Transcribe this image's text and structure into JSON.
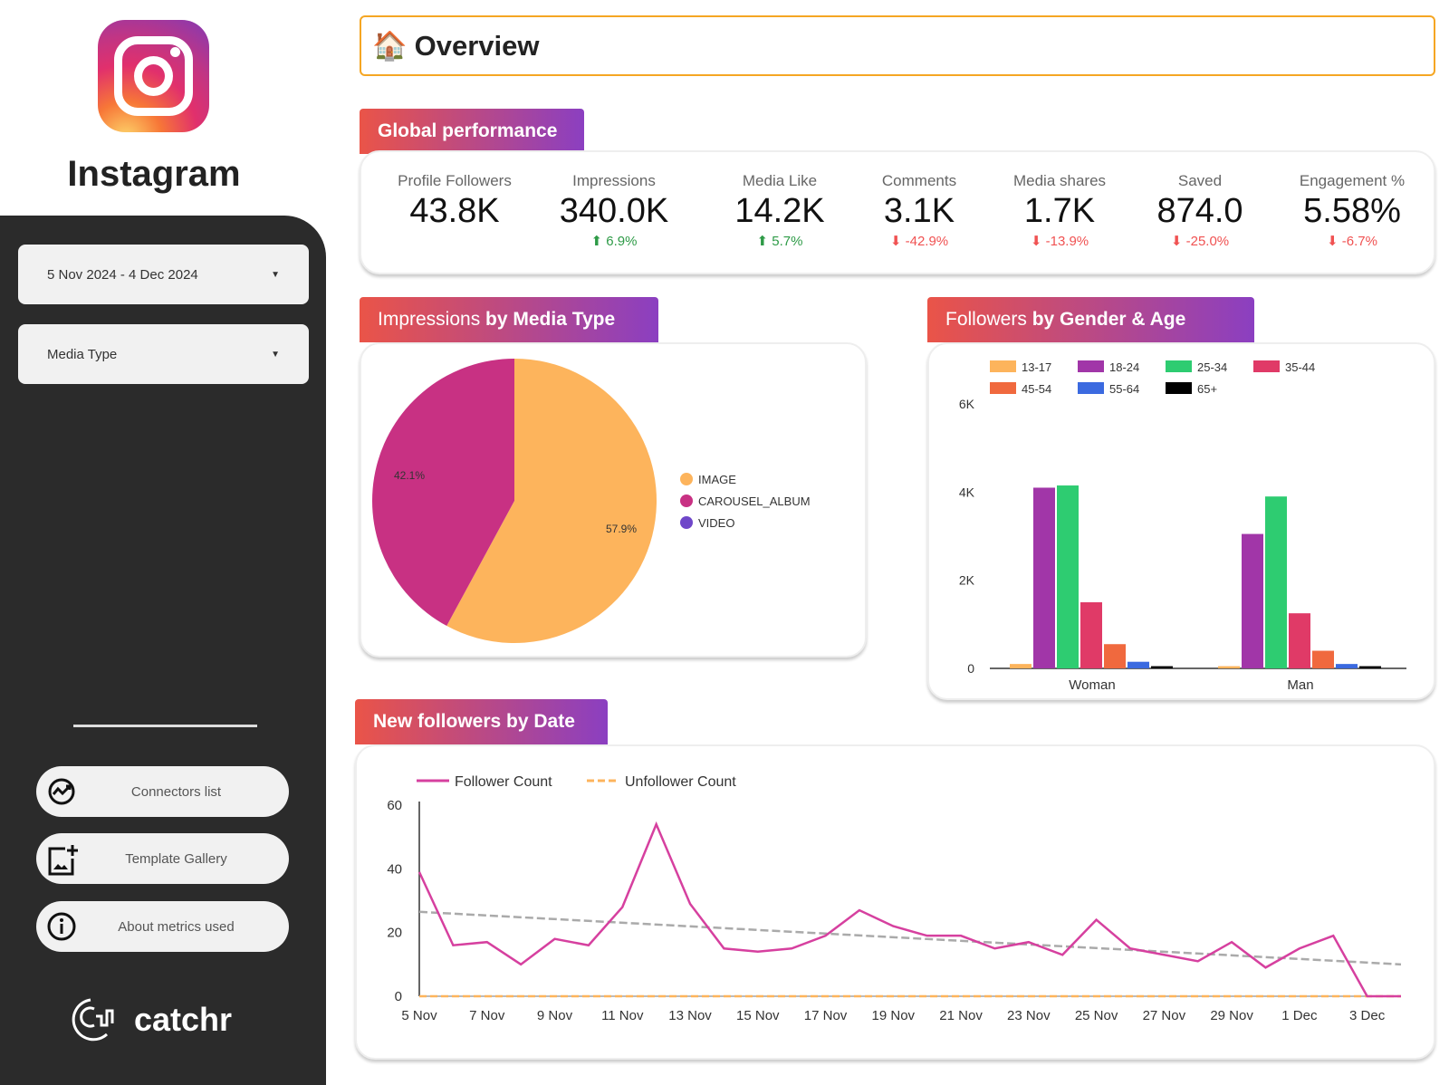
{
  "brand": {
    "name": "Instagram",
    "logo": "instagram-logo"
  },
  "sidebar": {
    "date_range": "5 Nov 2024 - 4 Dec 2024",
    "media_type": "Media Type",
    "links": [
      {
        "label": "Connectors list",
        "icon": "chart-circle-icon"
      },
      {
        "label": "Template Gallery",
        "icon": "add-image-icon"
      },
      {
        "label": "About metrics used",
        "icon": "info-icon"
      }
    ],
    "footer_logo": "catchr"
  },
  "header": {
    "icon": "🏠",
    "title": "Overview"
  },
  "global": {
    "title": "Global performance",
    "kpis": [
      {
        "label": "Profile Followers",
        "value": "43.8K",
        "delta": "",
        "dir": ""
      },
      {
        "label": "Impressions",
        "value": "340.0K",
        "delta": "6.9%",
        "dir": "up"
      },
      {
        "label": "Media Like",
        "value": "14.2K",
        "delta": "5.7%",
        "dir": "up"
      },
      {
        "label": "Comments",
        "value": "3.1K",
        "delta": "-42.9%",
        "dir": "down"
      },
      {
        "label": "Media shares",
        "value": "1.7K",
        "delta": "-13.9%",
        "dir": "down"
      },
      {
        "label": "Saved",
        "value": "874.0",
        "delta": "-25.0%",
        "dir": "down"
      },
      {
        "label": "Engagement %",
        "value": "5.58%",
        "delta": "-6.7%",
        "dir": "down"
      }
    ]
  },
  "colors": {
    "up": "#2e9b47",
    "down": "#f05252",
    "accent": "#f5a623",
    "tab_from": "#ea5448",
    "tab_to": "#8b3fc1"
  },
  "chart_data": [
    {
      "type": "pie",
      "title_light": "Impressions ",
      "title_bold": "by Media Type",
      "slices": [
        {
          "name": "IMAGE",
          "value": 57.9,
          "label": "57.9%",
          "color": "#fdb45c"
        },
        {
          "name": "CAROUSEL_ALBUM",
          "value": 42.1,
          "label": "42.1%",
          "color": "#c83183"
        },
        {
          "name": "VIDEO",
          "value": 0,
          "label": "",
          "color": "#6f47c9"
        }
      ],
      "legend": "right"
    },
    {
      "type": "bar",
      "title_light": "Followers ",
      "title_bold": "by Gender & Age",
      "categories": [
        "Woman",
        "Man"
      ],
      "ylim": [
        0,
        6000
      ],
      "yticks": [
        "0",
        "2K",
        "4K",
        "6K"
      ],
      "legend": "top",
      "series": [
        {
          "name": "13-17",
          "color": "#fdb45c",
          "values": [
            100,
            50
          ]
        },
        {
          "name": "18-24",
          "color": "#a136a8",
          "values": [
            4100,
            3050
          ]
        },
        {
          "name": "25-34",
          "color": "#2ecc71",
          "values": [
            4150,
            3900
          ]
        },
        {
          "name": "35-44",
          "color": "#e03a67",
          "values": [
            1500,
            1250
          ]
        },
        {
          "name": "45-54",
          "color": "#f0693e",
          "values": [
            550,
            400
          ]
        },
        {
          "name": "55-64",
          "color": "#3b6ae0",
          "values": [
            150,
            100
          ]
        },
        {
          "name": "65+",
          "color": "#000000",
          "values": [
            50,
            50
          ]
        }
      ]
    },
    {
      "type": "line",
      "title": "New followers by Date",
      "ylim": [
        0,
        60
      ],
      "yticks": [
        "0",
        "20",
        "40",
        "60"
      ],
      "legend": "top-left",
      "x": [
        "5 Nov",
        "6 Nov",
        "7 Nov",
        "8 Nov",
        "9 Nov",
        "10 Nov",
        "11 Nov",
        "12 Nov",
        "13 Nov",
        "14 Nov",
        "15 Nov",
        "16 Nov",
        "17 Nov",
        "18 Nov",
        "19 Nov",
        "20 Nov",
        "21 Nov",
        "22 Nov",
        "23 Nov",
        "24 Nov",
        "25 Nov",
        "26 Nov",
        "27 Nov",
        "28 Nov",
        "29 Nov",
        "30 Nov",
        "1 Dec",
        "2 Dec",
        "3 Dec",
        "4 Dec"
      ],
      "xticks": [
        "5 Nov",
        "7 Nov",
        "9 Nov",
        "11 Nov",
        "13 Nov",
        "15 Nov",
        "17 Nov",
        "19 Nov",
        "21 Nov",
        "23 Nov",
        "25 Nov",
        "27 Nov",
        "29 Nov",
        "1 Dec",
        "3 Dec"
      ],
      "series": [
        {
          "name": "Follower Count",
          "color": "#d6409f",
          "values": [
            39,
            16,
            17,
            10,
            18,
            16,
            28,
            54,
            29,
            15,
            14,
            15,
            19,
            27,
            22,
            19,
            19,
            15,
            17,
            13,
            24,
            15,
            13,
            11,
            17,
            9,
            15,
            19,
            0,
            0
          ]
        },
        {
          "name": "Unfollower Count",
          "color": "#fdb45c",
          "dashed": true,
          "values": [
            0,
            0,
            0,
            0,
            0,
            0,
            0,
            0,
            0,
            0,
            0,
            0,
            0,
            0,
            0,
            0,
            0,
            0,
            0,
            0,
            0,
            0,
            0,
            0,
            0,
            0,
            0,
            0,
            0,
            0
          ]
        }
      ],
      "trendline": {
        "from": 26.5,
        "to": 10,
        "color": "#aaaaaa"
      }
    }
  ]
}
